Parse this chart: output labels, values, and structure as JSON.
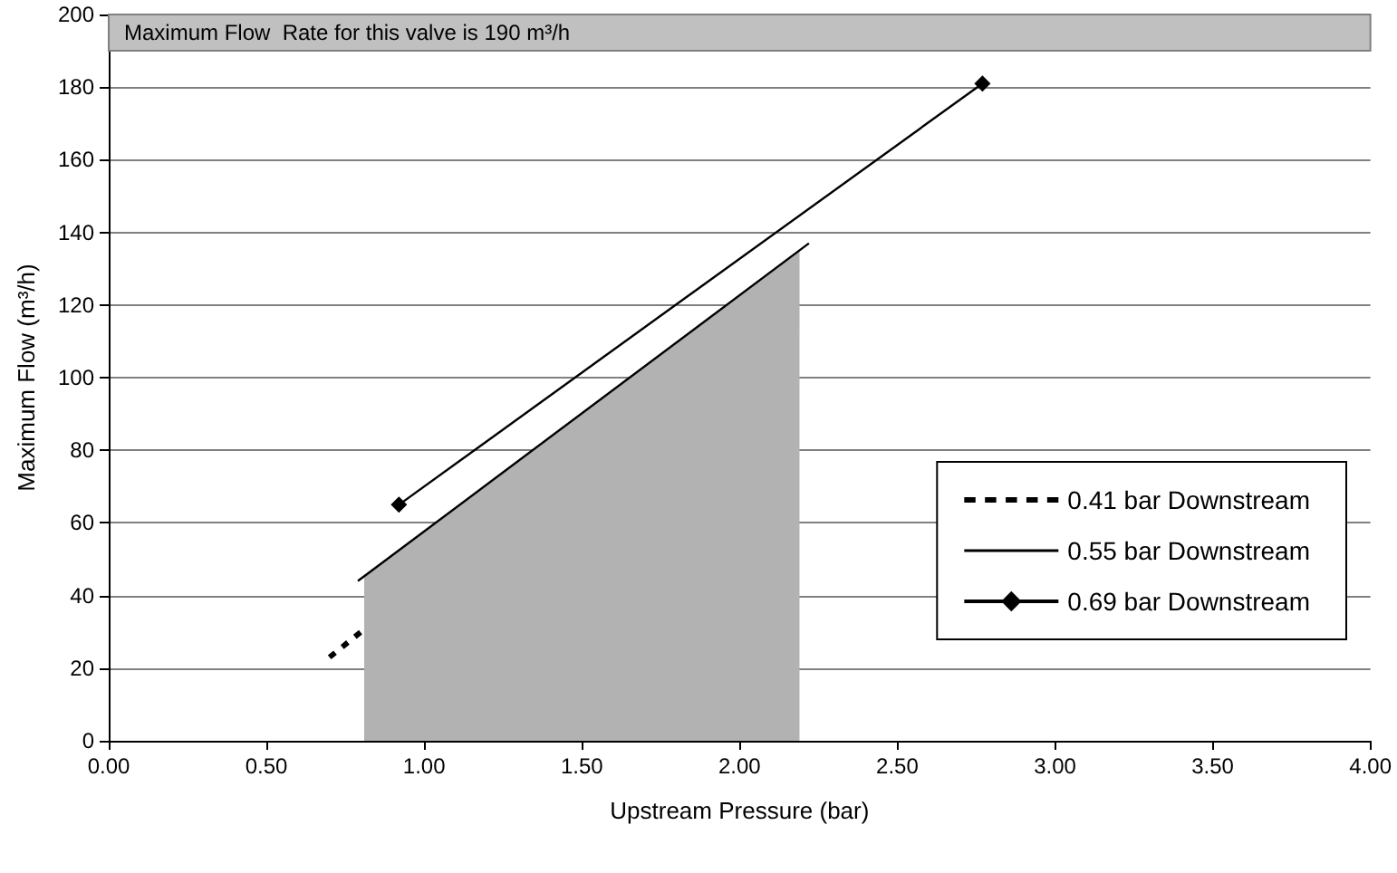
{
  "chart_data": {
    "type": "line",
    "xlabel": "Upstream Pressure (bar)",
    "ylabel": "Maximum Flow (m³/h)",
    "series": [
      {
        "type": "area",
        "color": "#b2b2b2",
        "x": [
          0.81,
          2.19
        ],
        "values": [
          45,
          135
        ]
      },
      {
        "name": "0.41 bar Downstream",
        "color": "#000000",
        "line_style": "dotted",
        "marker": "none",
        "x": [
          0.7,
          0.8
        ],
        "values": [
          23,
          30
        ]
      },
      {
        "name": "0.55 bar Downstream",
        "color": "#000000",
        "line_style": "solid",
        "marker": "none",
        "x": [
          0.79,
          2.22
        ],
        "values": [
          44,
          137
        ]
      },
      {
        "name": "0.69 bar Downstream",
        "color": "#000000",
        "line_style": "solid",
        "marker": "diamond",
        "x": [
          0.92,
          2.77
        ],
        "values": [
          65,
          181
        ]
      }
    ],
    "bands": [
      {
        "axis": "y",
        "from": 190,
        "to": 200,
        "label": "Maximum Flow  Rate for this valve is 190 m³/h",
        "color": "#c0c0c0"
      }
    ],
    "xlim": [
      0,
      4
    ],
    "xticks": [
      {
        "value": 0,
        "label": "0.00"
      },
      {
        "value": 0.5,
        "label": "0.50"
      },
      {
        "value": 1,
        "label": "1.00"
      },
      {
        "value": 1.5,
        "label": "1.50"
      },
      {
        "value": 2,
        "label": "2.00"
      },
      {
        "value": 2.5,
        "label": "2.50"
      },
      {
        "value": 3,
        "label": "3.00"
      },
      {
        "value": 3.5,
        "label": "3.50"
      },
      {
        "value": 4,
        "label": "4.00"
      }
    ],
    "ylim": [
      0,
      200
    ],
    "yticks": [
      0,
      20,
      40,
      60,
      80,
      100,
      120,
      140,
      160,
      180,
      200
    ],
    "grid": "y",
    "legend": "right"
  }
}
